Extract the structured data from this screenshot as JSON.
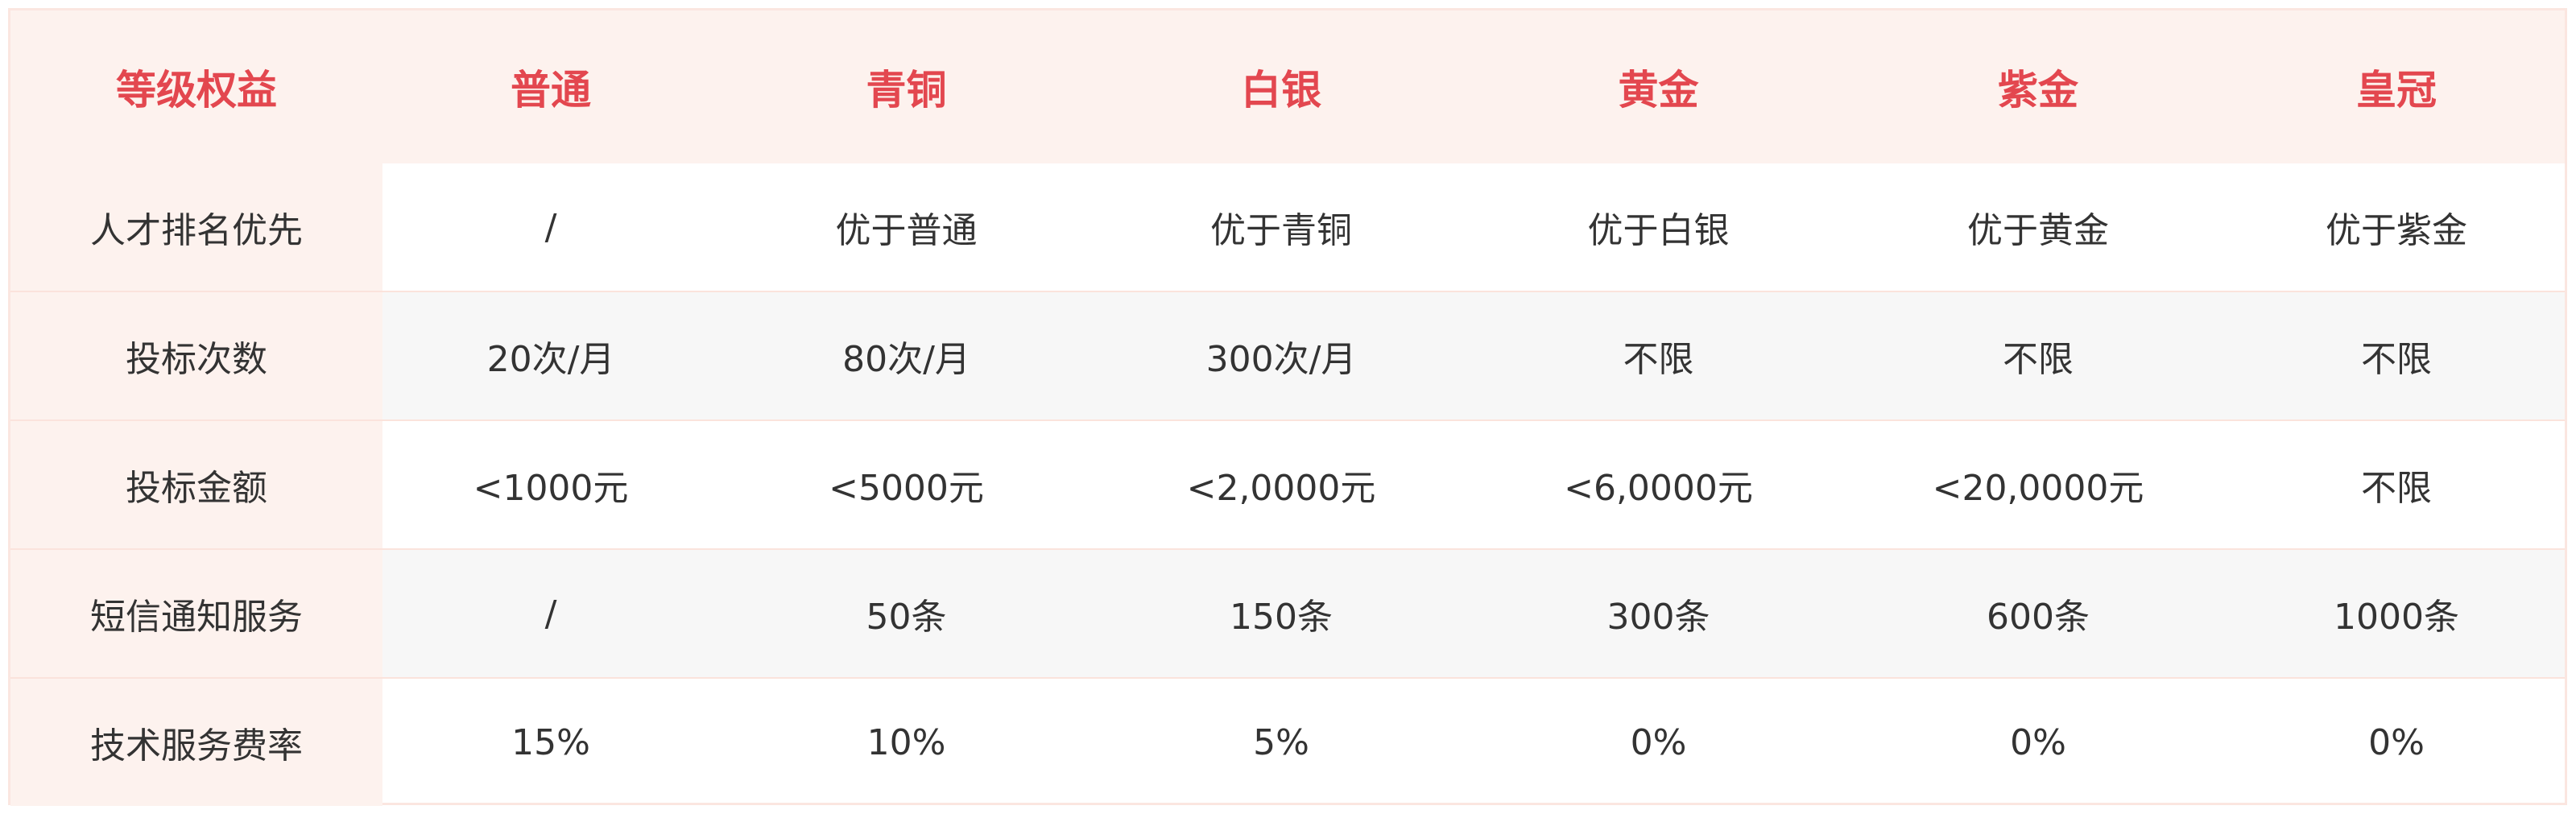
{
  "table": {
    "header": [
      "等级权益",
      "普通",
      "青铜",
      "白银",
      "黄金",
      "紫金",
      "皇冠"
    ],
    "rows": [
      [
        "人才排名优先",
        "/",
        "优于普通",
        "优于青铜",
        "优于白银",
        "优于黄金",
        "优于紫金"
      ],
      [
        "投标次数",
        "20次/月",
        "80次/月",
        "300次/月",
        "不限",
        "不限",
        "不限"
      ],
      [
        "投标金额",
        "<1000元",
        "<5000元",
        "<2,0000元",
        "<6,0000元",
        "<20,0000元",
        "不限"
      ],
      [
        "短信通知服务",
        "/",
        "50条",
        "150条",
        "300条",
        "600条",
        "1000条"
      ],
      [
        "技术服务费率",
        "15%",
        "10%",
        "5%",
        "0%",
        "0%",
        "0%"
      ]
    ]
  }
}
